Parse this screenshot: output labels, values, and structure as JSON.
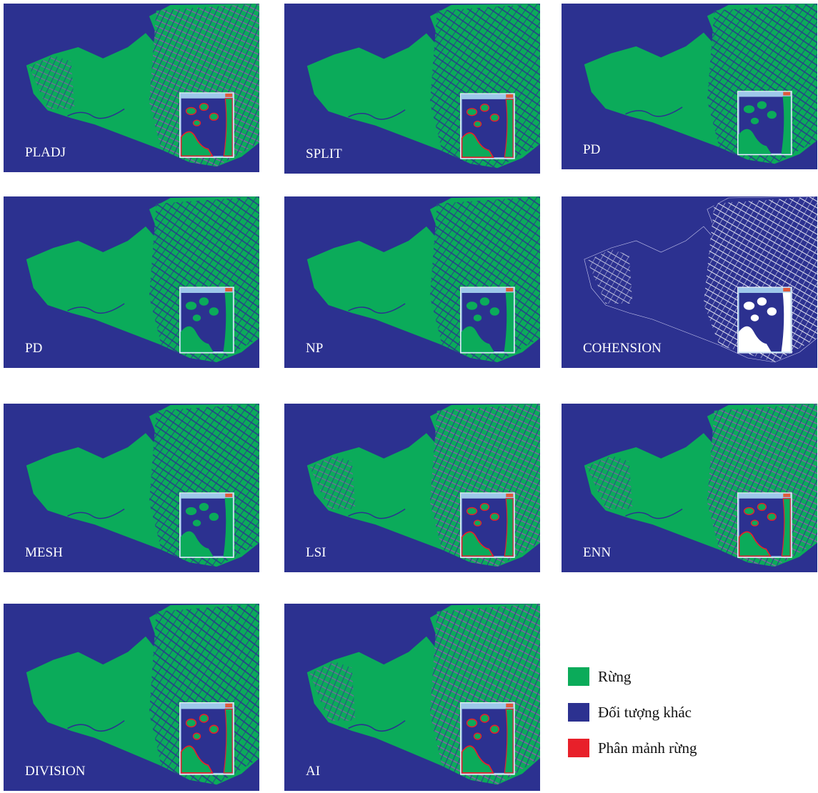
{
  "panels": [
    {
      "label": "PLADJ"
    },
    {
      "label": "SPLIT"
    },
    {
      "label": "PD"
    },
    {
      "label": "PD"
    },
    {
      "label": "NP"
    },
    {
      "label": "COHENSION"
    },
    {
      "label": "MESH"
    },
    {
      "label": "LSI"
    },
    {
      "label": "ENN"
    },
    {
      "label": "DIVISION"
    },
    {
      "label": "AI"
    }
  ],
  "legend": [
    {
      "label": "Rừng",
      "color": "#0bab5a"
    },
    {
      "label": "Đối tượng khác",
      "color": "#2c3190"
    },
    {
      "label": "Phân mảnh rừng",
      "color": "#e8202a"
    }
  ]
}
